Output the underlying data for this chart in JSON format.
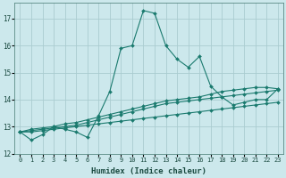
{
  "title": "",
  "xlabel": "Humidex (Indice chaleur)",
  "ylabel": "",
  "background_color": "#cce8ec",
  "grid_color": "#aaccd0",
  "line_color": "#1a7a6e",
  "xlim": [
    -0.5,
    23.5
  ],
  "ylim": [
    12,
    17.6
  ],
  "yticks": [
    12,
    13,
    14,
    15,
    16,
    17
  ],
  "xticks": [
    0,
    1,
    2,
    3,
    4,
    5,
    6,
    7,
    8,
    9,
    10,
    11,
    12,
    13,
    14,
    15,
    16,
    17,
    18,
    19,
    20,
    21,
    22,
    23
  ],
  "series": [
    [
      12.8,
      12.5,
      12.7,
      13.0,
      12.9,
      12.8,
      12.6,
      13.4,
      14.3,
      15.9,
      16.0,
      17.3,
      17.2,
      16.0,
      15.5,
      15.2,
      15.6,
      14.5,
      14.1,
      13.8,
      13.9,
      14.0,
      14.0,
      14.4
    ],
    [
      12.8,
      12.8,
      12.85,
      12.9,
      12.95,
      13.0,
      13.05,
      13.1,
      13.15,
      13.2,
      13.25,
      13.3,
      13.35,
      13.4,
      13.45,
      13.5,
      13.55,
      13.6,
      13.65,
      13.7,
      13.75,
      13.8,
      13.85,
      13.9
    ],
    [
      12.8,
      12.85,
      12.9,
      12.95,
      13.0,
      13.05,
      13.15,
      13.25,
      13.35,
      13.45,
      13.55,
      13.65,
      13.75,
      13.85,
      13.9,
      13.95,
      14.0,
      14.05,
      14.1,
      14.15,
      14.2,
      14.25,
      14.3,
      14.35
    ],
    [
      12.8,
      12.9,
      12.95,
      13.0,
      13.1,
      13.15,
      13.25,
      13.35,
      13.45,
      13.55,
      13.65,
      13.75,
      13.85,
      13.95,
      14.0,
      14.05,
      14.1,
      14.2,
      14.3,
      14.35,
      14.4,
      14.45,
      14.45,
      14.4
    ]
  ],
  "marker": "D",
  "markersize": 2.0,
  "linewidth": 0.8,
  "tick_fontsize": 5.0,
  "xlabel_fontsize": 6.5
}
